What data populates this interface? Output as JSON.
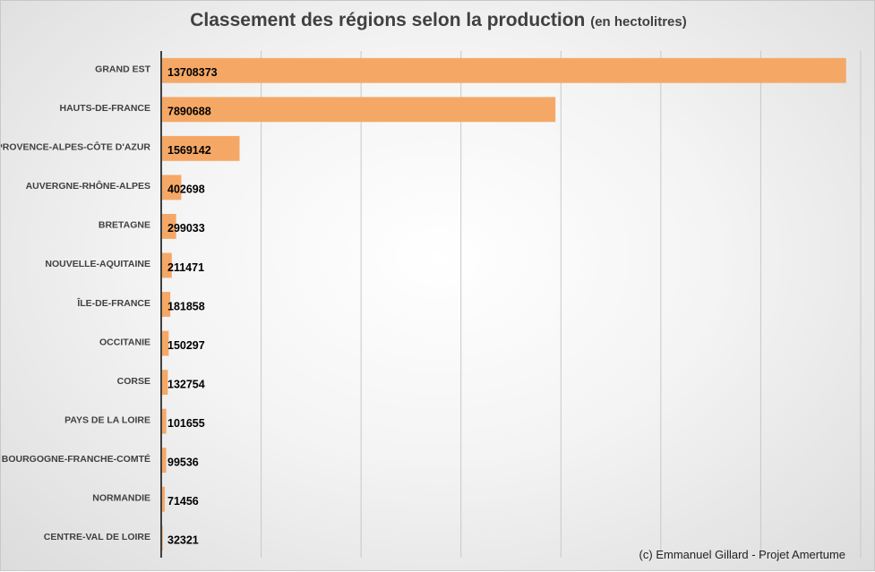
{
  "title": "Classement des régions selon la production",
  "subtitle": "(en hectolitres)",
  "credit": "(c) Emmanuel  Gillard  - Projet Amertume",
  "colors": {
    "bar": "#f5a866",
    "grid": "#c8c8c8",
    "axis": "#404040",
    "label": "#404040",
    "value": "#000000"
  },
  "chart_data": {
    "type": "bar",
    "orientation": "horizontal",
    "title": "Classement des régions selon la production",
    "subtitle": "(en hectolitres)",
    "xlim": [
      0,
      14000000
    ],
    "grid": true,
    "categories": [
      "GRAND EST",
      "HAUTS-DE-FRANCE",
      "PROVENCE-ALPES-CÔTE D'AZUR",
      "AUVERGNE-RHÔNE-ALPES",
      "BRETAGNE",
      "NOUVELLE-AQUITAINE",
      "ÎLE-DE-FRANCE",
      "OCCITANIE",
      "CORSE",
      "PAYS DE LA LOIRE",
      "BOURGOGNE-FRANCHE-COMTÉ",
      "NORMANDIE",
      "CENTRE-VAL DE LOIRE"
    ],
    "values": [
      13708373,
      7890688,
      1569142,
      402698,
      299033,
      211471,
      181858,
      150297,
      132754,
      101655,
      99536,
      71456,
      32321
    ]
  }
}
